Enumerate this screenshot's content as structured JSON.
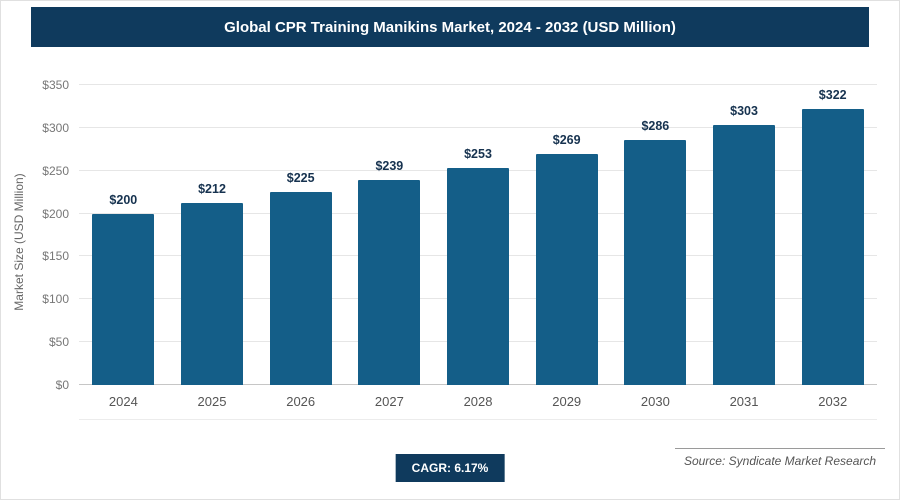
{
  "header": {
    "title": "Global CPR Training Manikins Market, 2024 - 2032 (USD Million)"
  },
  "chart_data": {
    "type": "bar",
    "title": "Global CPR Training Manikins Market, 2024 - 2032 (USD Million)",
    "categories": [
      "2024",
      "2025",
      "2026",
      "2027",
      "2028",
      "2029",
      "2030",
      "2031",
      "2032"
    ],
    "values": [
      200,
      212,
      225,
      239,
      253,
      269,
      286,
      303,
      322
    ],
    "value_labels": [
      "$200",
      "$212",
      "$225",
      "$239",
      "$253",
      "$269",
      "$286",
      "$303",
      "$322"
    ],
    "xlabel": "",
    "ylabel": "Market Size (USD Million)",
    "ylim": [
      0,
      350
    ],
    "ytick_step": 50,
    "yticks": [
      "$0",
      "$50",
      "$100",
      "$150",
      "$200",
      "$250",
      "$300",
      "$350"
    ],
    "grid": "horizontal",
    "legend": "none",
    "bar_color": "#145e88"
  },
  "footer": {
    "cagr_label": "CAGR: 6.17%",
    "source": "Source: Syndicate Market Research"
  },
  "colors": {
    "title_bar_bg": "#0f3a5d",
    "title_text": "#ffffff",
    "bar_fill": "#145e88",
    "value_label": "#16324f",
    "axis_text": "#777777",
    "gridline": "#e6e6e6"
  }
}
